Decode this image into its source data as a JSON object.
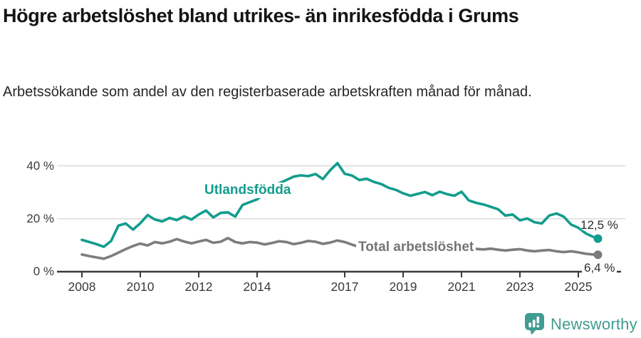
{
  "chart_data": {
    "type": "line",
    "title": "Högre arbetslöshet bland utrikes- än inrikesfödda i Grums",
    "subtitle": "Arbetssökande som andel av den registerbaserade arbetskraften månad för månad.",
    "unit": "%",
    "grid": "horizontal-only",
    "legend_position": "inline-annotations",
    "x_axis": {
      "ticks": [
        2008,
        2010,
        2012,
        2014,
        2017,
        2019,
        2021,
        2023,
        2025
      ],
      "range": [
        2007.2,
        2026.5
      ]
    },
    "y_axis": {
      "ticks": [
        0,
        20,
        40
      ],
      "tick_labels": [
        "0 %",
        "20 %",
        "40 %"
      ],
      "range": [
        0,
        44
      ]
    },
    "colors": {
      "grid": "#dcdcdc",
      "axis": "#3a3a3a",
      "title_text": "#141414",
      "body_text": "#262626",
      "value_text": "#2b2b2b",
      "brand": "#3f9c90"
    },
    "x": [
      2008,
      2008.25,
      2008.5,
      2008.75,
      2009,
      2009.25,
      2009.5,
      2009.75,
      2010,
      2010.25,
      2010.5,
      2010.75,
      2011,
      2011.25,
      2011.5,
      2011.75,
      2012,
      2012.25,
      2012.5,
      2012.75,
      2013,
      2013.25,
      2013.5,
      2013.75,
      2014,
      2014.25,
      2014.5,
      2014.75,
      2015,
      2015.25,
      2015.5,
      2015.75,
      2016,
      2016.25,
      2016.5,
      2016.75,
      2017,
      2017.25,
      2017.5,
      2017.75,
      2018,
      2018.25,
      2018.5,
      2018.75,
      2019,
      2019.25,
      2019.5,
      2019.75,
      2020,
      2020.25,
      2020.5,
      2020.75,
      2021,
      2021.25,
      2021.5,
      2021.75,
      2022,
      2022.25,
      2022.5,
      2022.75,
      2023,
      2023.25,
      2023.5,
      2023.75,
      2024,
      2024.25,
      2024.5,
      2024.75,
      2025,
      2025.25,
      2025.5,
      2025.67
    ],
    "series": [
      {
        "name": "Utlandsfödda",
        "color": "#129c8d",
        "end_label": "12,5 %",
        "end_value": 12.5,
        "values": [
          12.0,
          11.2,
          10.4,
          9.4,
          11.6,
          17.4,
          18.2,
          15.9,
          18.3,
          21.4,
          19.7,
          19.0,
          20.3,
          19.5,
          20.9,
          19.7,
          21.6,
          23.1,
          20.5,
          22.2,
          22.4,
          20.8,
          25.2,
          26.3,
          27.3,
          29.3,
          31.6,
          33.4,
          34.6,
          35.9,
          36.4,
          36.1,
          36.9,
          35.0,
          38.3,
          41.0,
          37.0,
          36.3,
          34.6,
          35.1,
          33.9,
          33.1,
          31.7,
          30.9,
          29.6,
          28.7,
          29.4,
          30.1,
          28.9,
          30.2,
          29.3,
          28.7,
          30.2,
          26.9,
          26.0,
          25.4,
          24.5,
          23.6,
          21.2,
          21.6,
          19.4,
          20.1,
          18.7,
          18.2,
          21.2,
          22.0,
          20.8,
          17.8,
          16.6,
          14.5,
          13.2,
          12.5
        ]
      },
      {
        "name": "Total arbetslöshet",
        "color": "#7c7c7c",
        "label_color": "#757575",
        "end_label": "6,4 %",
        "end_value": 6.4,
        "values": [
          6.5,
          5.9,
          5.4,
          4.9,
          5.9,
          7.2,
          8.5,
          9.7,
          10.6,
          9.9,
          11.2,
          10.7,
          11.3,
          12.3,
          11.4,
          10.7,
          11.4,
          12.0,
          10.9,
          11.3,
          12.7,
          11.2,
          10.7,
          11.2,
          11.0,
          10.3,
          10.8,
          11.5,
          11.2,
          10.4,
          10.9,
          11.6,
          11.3,
          10.5,
          11.0,
          11.8,
          11.2,
          10.2,
          9.4,
          9.0,
          9.3,
          8.8,
          8.6,
          8.9,
          9.2,
          8.8,
          8.6,
          8.9,
          9.1,
          9.5,
          9.2,
          9.0,
          9.3,
          8.9,
          8.6,
          8.4,
          8.7,
          8.3,
          8.0,
          8.3,
          8.5,
          8.0,
          7.7,
          8.0,
          8.2,
          7.7,
          7.4,
          7.7,
          7.3,
          6.8,
          6.5,
          6.4
        ]
      }
    ]
  },
  "footer": {
    "brand": "Newsworthy"
  }
}
